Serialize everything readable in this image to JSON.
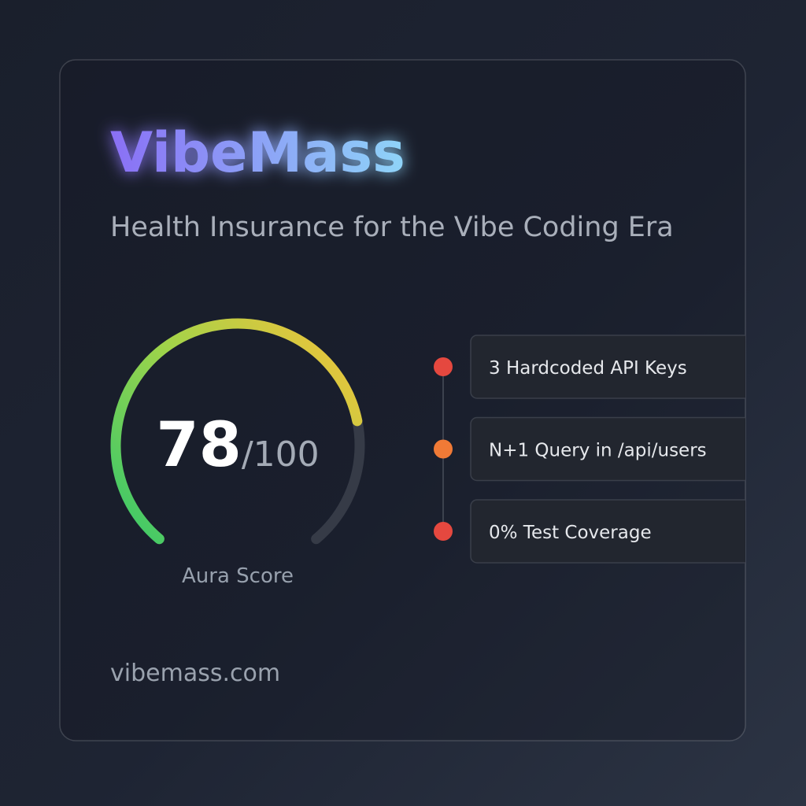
{
  "brand": {
    "title": "VibeMass",
    "subtitle": "Health Insurance for the Vibe Coding Era"
  },
  "gauge": {
    "value": 78,
    "max": {
      "value": 100,
      "label": "/100"
    },
    "label": "Aura Score"
  },
  "issues": [
    {
      "text": "3 Hardcoded API Keys",
      "color": "#e5483f"
    },
    {
      "text": "N+1 Query in /api/users",
      "color": "#f07a36"
    },
    {
      "text": "0% Test Coverage",
      "color": "#e5483f"
    }
  ],
  "footer": "vibemass.com"
}
